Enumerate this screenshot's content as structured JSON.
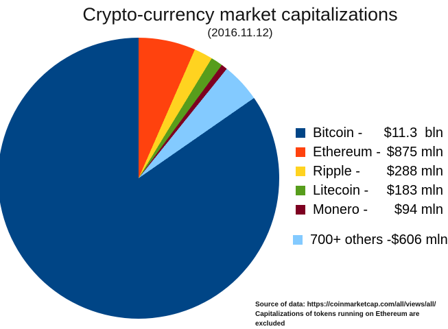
{
  "chart_data": {
    "type": "pie",
    "title": "Crypto-currency market capitalizations",
    "subtitle": "(2016.11.12)",
    "unit": "USD mln",
    "slices": [
      {
        "name": "bitcoin",
        "label": "Bitcoin -",
        "value_label": "$11.3  bln",
        "value_mln": 11300,
        "color": "#004586"
      },
      {
        "name": "ethereum",
        "label": "Ethereum -",
        "value_label": "$875 mln",
        "value_mln": 875,
        "color": "#ff420e"
      },
      {
        "name": "ripple",
        "label": "Ripple -",
        "value_label": "$288 mln",
        "value_mln": 288,
        "color": "#ffd320"
      },
      {
        "name": "litecoin",
        "label": "Litecoin -",
        "value_label": "$183 mln",
        "value_mln": 183,
        "color": "#579d1c"
      },
      {
        "name": "monero",
        "label": "Monero -",
        "value_label": "$94 mln",
        "value_mln": 94,
        "color": "#7e0021"
      },
      {
        "name": "others",
        "label": "700+ others -",
        "value_label": "$606 mln",
        "value_mln": 606,
        "color": "#83caff"
      }
    ],
    "draw_order": [
      1,
      2,
      3,
      4,
      5,
      0
    ],
    "start_angle_deg": 0,
    "direction": "clockwise",
    "legend_position": "right",
    "grid": false
  },
  "footer": {
    "line1": "Source of data: https://coinmarketcap.com/all/views/all/",
    "line2": "Capitalizations of tokens running on Ethereum are excluded"
  }
}
